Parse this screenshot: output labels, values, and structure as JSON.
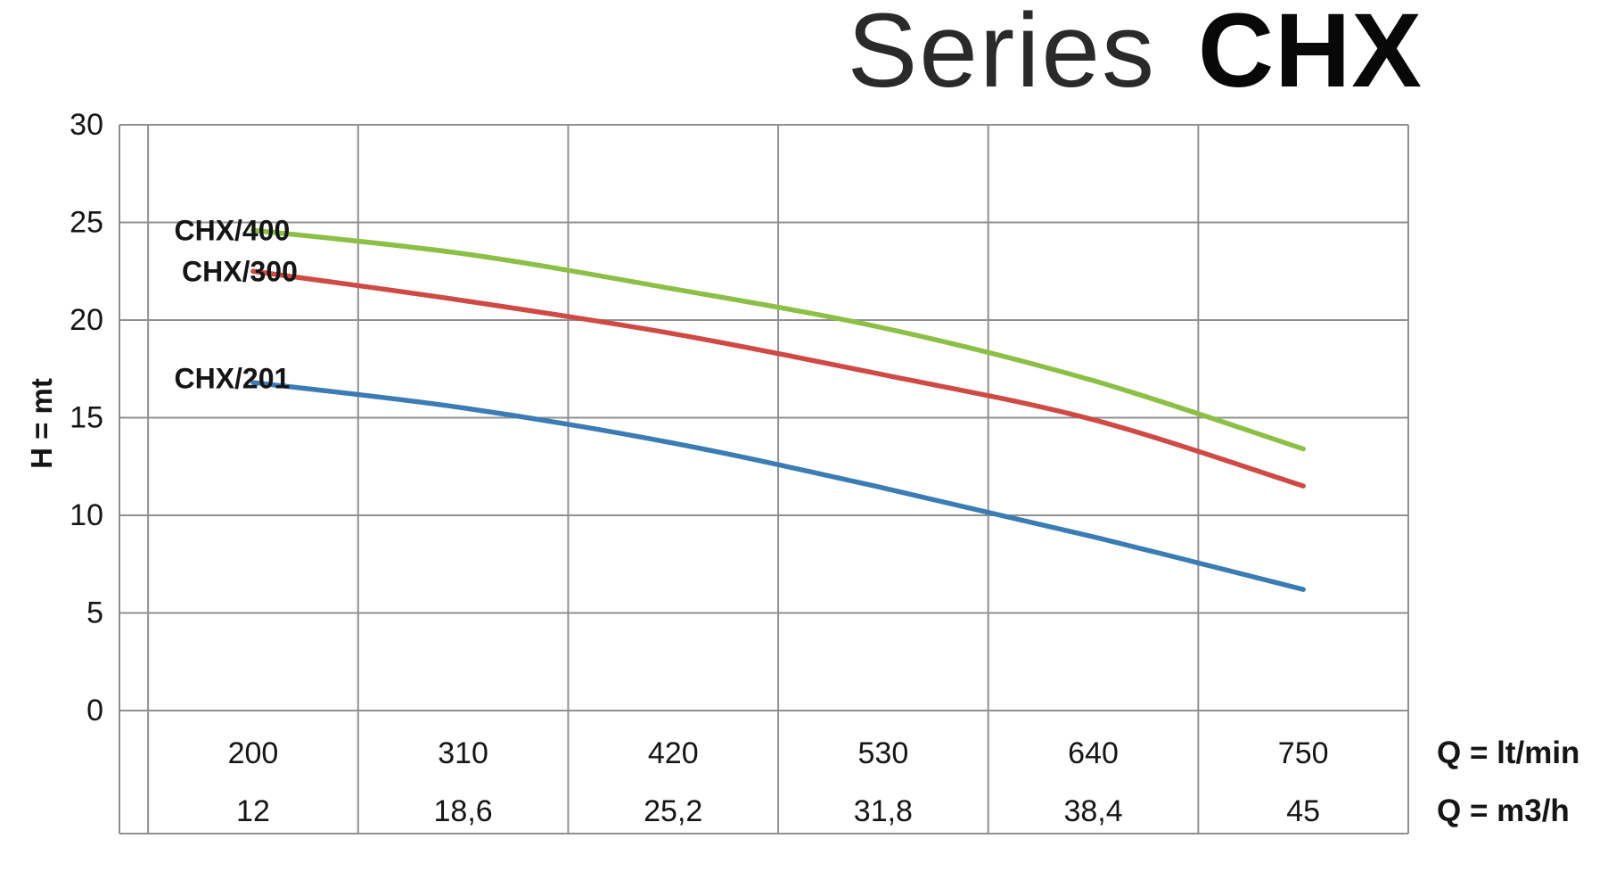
{
  "title": {
    "light": "Series",
    "bold": "CHX"
  },
  "y_axis": {
    "label": "H = mt",
    "ticks": [
      30,
      25,
      20,
      15,
      10,
      5,
      0
    ],
    "min": 0,
    "max": 30
  },
  "x_axis": {
    "gridline_q": [
      145,
      255,
      365,
      475,
      585,
      695,
      805
    ],
    "tick_q": [
      200,
      310,
      420,
      530,
      640,
      750
    ],
    "row1": {
      "ticks": [
        "200",
        "310",
        "420",
        "530",
        "640",
        "750"
      ],
      "unit": "Q = lt/min"
    },
    "row2": {
      "ticks": [
        "12",
        "18,6",
        "25,2",
        "31,8",
        "38,4",
        "45"
      ],
      "unit": "Q = m3/h"
    }
  },
  "chart_data": {
    "type": "line",
    "title": "Series CHX",
    "ylabel": "H = mt",
    "xlabel_row1": "Q = lt/min",
    "xlabel_row2": "Q = m3/h",
    "ylim": [
      0,
      30
    ],
    "grid": true,
    "legend_position": "inline-labels",
    "x_lt_min": [
      200,
      310,
      420,
      530,
      640,
      750
    ],
    "x_m3_h": [
      12,
      18.6,
      25.2,
      31.8,
      38.4,
      45
    ],
    "series": [
      {
        "name": "CHX/400",
        "color": "#8cbf45",
        "values": [
          24.6,
          23.4,
          21.6,
          19.6,
          16.9,
          13.4
        ],
        "label_pos": {
          "q": 189,
          "h": 24.6
        }
      },
      {
        "name": "CHX/300",
        "color": "#cf4a44",
        "values": [
          22.5,
          21.0,
          19.3,
          17.2,
          14.9,
          11.5
        ],
        "label_pos": {
          "q": 193,
          "h": 22.5
        }
      },
      {
        "name": "CHX/201",
        "color": "#3b7cb4",
        "values": [
          16.8,
          15.5,
          13.7,
          11.4,
          8.9,
          6.2
        ],
        "label_pos": {
          "q": 189,
          "h": 17.0
        }
      }
    ]
  },
  "colors": {
    "grid": "#909090",
    "text": "#151515",
    "series_label": "#151515"
  }
}
